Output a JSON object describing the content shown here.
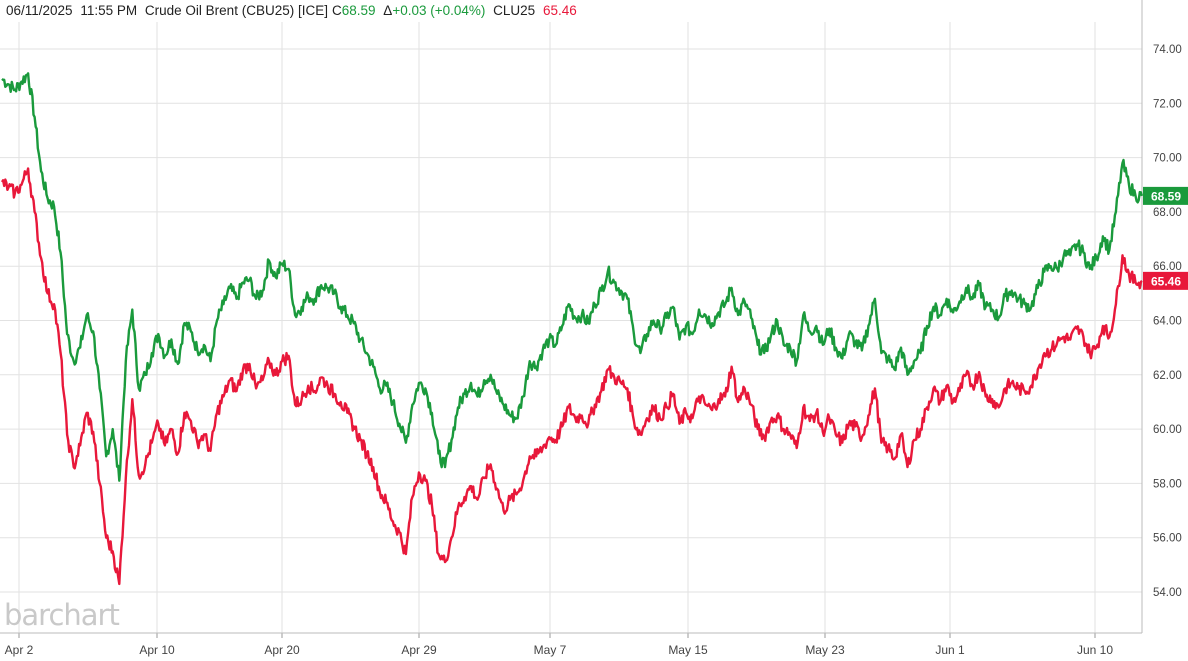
{
  "header": {
    "date": "06/11/2025",
    "time": "11:55 PM",
    "instrument": "Crude Oil Brent (CBU25) [ICE]",
    "close_prefix": "C",
    "close_value": "68.59",
    "change_prefix": "Δ",
    "change_value": "+0.03 (+0.04%)",
    "compare_symbol": "CLU25",
    "compare_value": "65.46"
  },
  "logo": "barchart",
  "colors": {
    "brent": "#1a9a3c",
    "wti": "#e8183a",
    "grid": "#e2e2e2",
    "axis_text": "#444444"
  },
  "chart_data": {
    "type": "line",
    "x_ticks": [
      "Apr 2",
      "Apr 10",
      "Apr 20",
      "Apr 29",
      "May 7",
      "May 15",
      "May 23",
      "Jun 1",
      "Jun 10"
    ],
    "y_ticks": [
      "54.00",
      "56.00",
      "58.00",
      "60.00",
      "62.00",
      "64.00",
      "66.00",
      "68.00",
      "70.00",
      "72.00",
      "74.00"
    ],
    "ylim": [
      53,
      75.5
    ],
    "grid": true,
    "last_value_tags": [
      "68.59",
      "65.46"
    ],
    "series": [
      {
        "name": "CBU25",
        "values": [
          72.9,
          72.7,
          72.5,
          72.8,
          73.1,
          71.5,
          69.5,
          68.5,
          68.2,
          66.5,
          63.5,
          62.5,
          63.0,
          64.2,
          63.6,
          61.5,
          59.0,
          60.0,
          58.1,
          62.5,
          64.4,
          61.5,
          62.0,
          62.8,
          63.5,
          62.7,
          63.3,
          62.4,
          63.9,
          63.6,
          62.9,
          63.1,
          62.5,
          64.0,
          64.6,
          65.2,
          64.8,
          65.4,
          65.5,
          64.8,
          65.1,
          66.2,
          65.6,
          66.1,
          65.9,
          64.2,
          64.5,
          64.9,
          64.8,
          65.3,
          65.2,
          65.0,
          64.5,
          64.2,
          63.9,
          63.3,
          62.8,
          62.3,
          61.5,
          61.6,
          61.0,
          60.2,
          59.5,
          60.9,
          61.7,
          61.5,
          60.6,
          59.1,
          58.6,
          59.6,
          60.8,
          61.3,
          61.7,
          61.2,
          61.8,
          62.0,
          61.3,
          60.9,
          60.5,
          60.4,
          61.2,
          62.5,
          62.3,
          62.9,
          63.3,
          63.1,
          63.8,
          64.6,
          64.1,
          64.2,
          63.9,
          64.6,
          65.1,
          65.8,
          65.4,
          65.1,
          64.8,
          63.5,
          62.8,
          63.5,
          64.0,
          63.7,
          64.1,
          64.5,
          63.3,
          63.8,
          63.5,
          64.4,
          64.2,
          63.9,
          64.3,
          64.6,
          65.2,
          64.2,
          64.7,
          64.1,
          63.1,
          62.8,
          63.4,
          64.0,
          63.1,
          63.0,
          62.5,
          64.2,
          63.6,
          63.8,
          63.1,
          63.7,
          63.0,
          62.6,
          63.5,
          63.2,
          62.9,
          63.8,
          64.8,
          62.8,
          62.6,
          62.2,
          63.0,
          62.0,
          62.5,
          62.8,
          63.8,
          64.5,
          64.2,
          64.8,
          64.3,
          64.7,
          65.2,
          64.8,
          65.3,
          64.5,
          64.4,
          64.1,
          64.9,
          65.1,
          64.8,
          64.6,
          64.5,
          65.2,
          65.8,
          66.0,
          65.9,
          66.4,
          66.4,
          66.8,
          66.5,
          65.9,
          66.3,
          67.1,
          66.6,
          68.0,
          69.8,
          69.0,
          68.6,
          68.59
        ]
      },
      {
        "name": "CLU25",
        "values": [
          69.1,
          68.9,
          68.7,
          69.0,
          69.6,
          68.0,
          66.3,
          65.0,
          64.6,
          62.8,
          59.8,
          58.6,
          59.4,
          60.6,
          59.9,
          58.0,
          56.0,
          55.5,
          54.3,
          58.2,
          61.1,
          58.3,
          58.7,
          59.5,
          60.2,
          59.4,
          60.0,
          59.1,
          60.6,
          60.3,
          59.5,
          59.8,
          59.2,
          60.6,
          61.2,
          61.8,
          61.4,
          62.2,
          62.4,
          61.5,
          61.8,
          62.5,
          62.0,
          62.5,
          62.7,
          60.9,
          61.1,
          61.6,
          61.4,
          61.9,
          61.6,
          61.3,
          61.0,
          60.6,
          60.1,
          59.6,
          59.1,
          58.6,
          57.7,
          57.3,
          56.6,
          56.2,
          55.4,
          57.5,
          58.4,
          58.1,
          57.2,
          55.4,
          55.1,
          56.0,
          57.1,
          57.5,
          57.9,
          57.4,
          58.2,
          58.7,
          57.8,
          57.0,
          57.4,
          57.6,
          58.1,
          59.0,
          59.0,
          59.3,
          59.7,
          59.6,
          60.1,
          60.8,
          60.4,
          60.5,
          60.2,
          60.9,
          61.4,
          62.2,
          61.9,
          61.7,
          61.5,
          60.3,
          59.8,
          60.4,
          60.8,
          60.4,
          60.8,
          61.3,
          60.2,
          60.6,
          60.4,
          61.2,
          60.9,
          60.7,
          61.1,
          61.2,
          62.3,
          61.0,
          61.5,
          60.9,
          60.0,
          59.7,
          60.3,
          60.5,
          60.0,
          59.8,
          59.3,
          60.8,
          60.3,
          60.6,
          59.9,
          60.4,
          59.8,
          59.5,
          60.2,
          60.1,
          59.7,
          60.5,
          61.5,
          59.5,
          59.3,
          58.9,
          59.8,
          58.6,
          59.6,
          60.0,
          60.8,
          61.5,
          61.0,
          61.6,
          61.0,
          61.4,
          62.0,
          61.6,
          62.1,
          61.2,
          61.1,
          60.8,
          61.5,
          61.7,
          61.5,
          61.4,
          61.6,
          62.2,
          62.8,
          62.9,
          63.2,
          63.4,
          63.3,
          63.7,
          63.4,
          62.8,
          63.0,
          63.8,
          63.4,
          64.6,
          66.4,
          65.7,
          65.4,
          65.46
        ]
      }
    ]
  }
}
